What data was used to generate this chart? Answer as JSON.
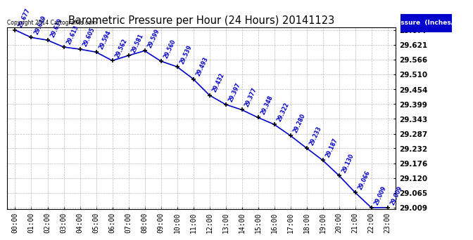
{
  "title": "Barometric Pressure per Hour (24 Hours) 20141123",
  "copyright": "Copyright 2014 Cartografics.com",
  "legend_label": "Pressure  (Inches/Hg)",
  "hours": [
    0,
    1,
    2,
    3,
    4,
    5,
    6,
    7,
    8,
    9,
    10,
    11,
    12,
    13,
    14,
    15,
    16,
    17,
    18,
    19,
    20,
    21,
    22,
    23
  ],
  "hour_labels": [
    "00:00",
    "01:00",
    "02:00",
    "03:00",
    "04:00",
    "05:00",
    "06:00",
    "07:00",
    "08:00",
    "09:00",
    "10:00",
    "11:00",
    "12:00",
    "13:00",
    "14:00",
    "15:00",
    "16:00",
    "17:00",
    "18:00",
    "19:00",
    "20:00",
    "21:00",
    "22:00",
    "23:00"
  ],
  "pressures": [
    29.677,
    29.649,
    29.639,
    29.613,
    29.605,
    29.594,
    29.562,
    29.581,
    29.599,
    29.56,
    29.539,
    29.493,
    29.432,
    29.397,
    29.377,
    29.348,
    29.322,
    29.28,
    29.233,
    29.187,
    29.13,
    29.066,
    29.009,
    29.009
  ],
  "ylim_min": 29.009,
  "ylim_max": 29.677,
  "yticks": [
    29.009,
    29.065,
    29.12,
    29.176,
    29.232,
    29.287,
    29.343,
    29.399,
    29.454,
    29.51,
    29.566,
    29.621,
    29.677
  ],
  "line_color": "#0000CC",
  "marker_color": "#000000",
  "bg_color": "#ffffff",
  "grid_color": "#bbbbbb",
  "title_color": "#000000",
  "label_color": "#0000CC",
  "copyright_color": "#000000",
  "legend_bg": "#0000CC",
  "legend_text_color": "#ffffff"
}
